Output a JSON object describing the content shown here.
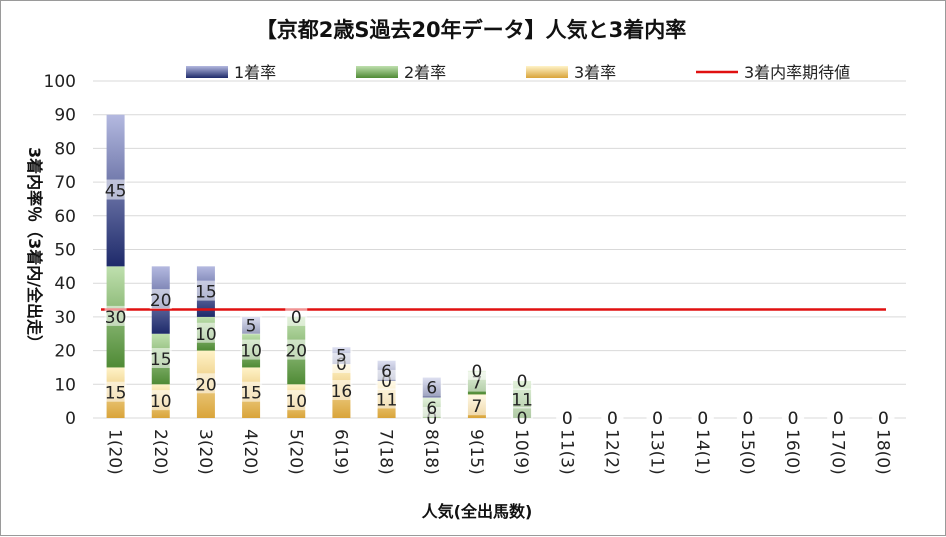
{
  "chart_data": {
    "type": "bar",
    "stacked": true,
    "title": "【京都2歳S過去20年データ】人気と3着内率",
    "xlabel": "人気(全出馬数)",
    "ylabel": "3着内率％（3着内/全出走）",
    "ylim": [
      0,
      100
    ],
    "yticks": [
      "0",
      "10",
      "20",
      "30",
      "40",
      "50",
      "60",
      "70",
      "80",
      "90",
      "100"
    ],
    "grid": true,
    "legend_position": "top",
    "categories": [
      "1(20)",
      "2(20)",
      "3(20)",
      "4(20)",
      "5(20)",
      "6(19)",
      "7(18)",
      "8(18)",
      "9(15)",
      "10(9)",
      "11(3)",
      "12(2)",
      "13(1)",
      "14(1)",
      "15(0)",
      "16(0)",
      "17(0)",
      "18(0)"
    ],
    "series": [
      {
        "name": "3着率",
        "color": "#d9a43a",
        "values": [
          15,
          10,
          20,
          15,
          10,
          16,
          11,
          0,
          7,
          0,
          0,
          0,
          0,
          0,
          0,
          0,
          0,
          0
        ]
      },
      {
        "name": "2着率",
        "color": "#5f9a45",
        "values": [
          30,
          15,
          10,
          10,
          20,
          0,
          0,
          6,
          7,
          11,
          0,
          0,
          0,
          0,
          0,
          0,
          0,
          0
        ]
      },
      {
        "name": "1着率",
        "color": "#3a4a8f",
        "values": [
          45,
          20,
          15,
          5,
          0,
          5,
          6,
          6,
          0,
          0,
          0,
          0,
          0,
          0,
          0,
          0,
          0,
          0
        ]
      }
    ],
    "expected_line": {
      "name": "3着内率期待値",
      "color": "#e01010",
      "value": 32.2
    }
  }
}
